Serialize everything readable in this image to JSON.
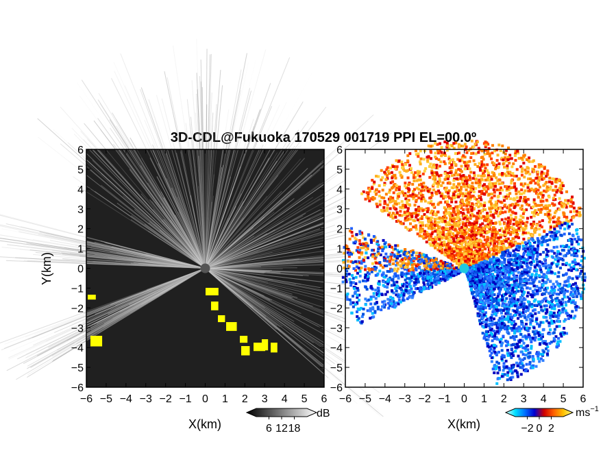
{
  "chart_data": [
    {
      "type": "heatmap",
      "title": "3D-CDL@Fukuoka 170529 001719 PPI EL=00.0º",
      "panel": "left",
      "quantity": "signal-to-noise ratio",
      "xlabel": "X(km)",
      "ylabel": "Y(km)",
      "xlim": [
        -6,
        6
      ],
      "ylim": [
        -6,
        6
      ],
      "x_ticks": [
        "−6",
        "−5",
        "−4",
        "−3",
        "−2",
        "−1",
        "0",
        "1",
        "2",
        "3",
        "4",
        "5",
        "6"
      ],
      "y_ticks": [
        "6",
        "5",
        "4",
        "3",
        "2",
        "1",
        "0",
        "−1",
        "−2",
        "−3",
        "−4",
        "−5",
        "−6"
      ],
      "colorbar": {
        "unit": "dB",
        "ticks": [
          "6",
          "12",
          "18"
        ],
        "min": 0,
        "max": 24,
        "colors": [
          "#000000",
          "#ffffff"
        ]
      },
      "highlight_color": "#ffff00",
      "background_color": "#202020"
    },
    {
      "type": "heatmap",
      "panel": "right",
      "quantity": "radial velocity",
      "xlabel": "X(km)",
      "xlim": [
        -6,
        6
      ],
      "ylim": [
        -6,
        6
      ],
      "x_ticks": [
        "−6",
        "−5",
        "−4",
        "−3",
        "−2",
        "−1",
        "0",
        "1",
        "2",
        "3",
        "4",
        "5",
        "6"
      ],
      "y_ticks": [
        "6",
        "5",
        "4",
        "3",
        "2",
        "1",
        "0",
        "−1",
        "−2",
        "−3",
        "−4",
        "−5",
        "−6"
      ],
      "colorbar": {
        "unit": "ms",
        "unit_exponent": "−1",
        "ticks": [
          "−2",
          "0",
          "2"
        ],
        "min": -4,
        "max": 4,
        "colors": [
          "#e0ffff",
          "#00e0ff",
          "#0070ff",
          "#0000d0",
          "#d00000",
          "#ff6000",
          "#ffc000",
          "#ffff80"
        ]
      },
      "background_color": "#ffffff"
    }
  ]
}
